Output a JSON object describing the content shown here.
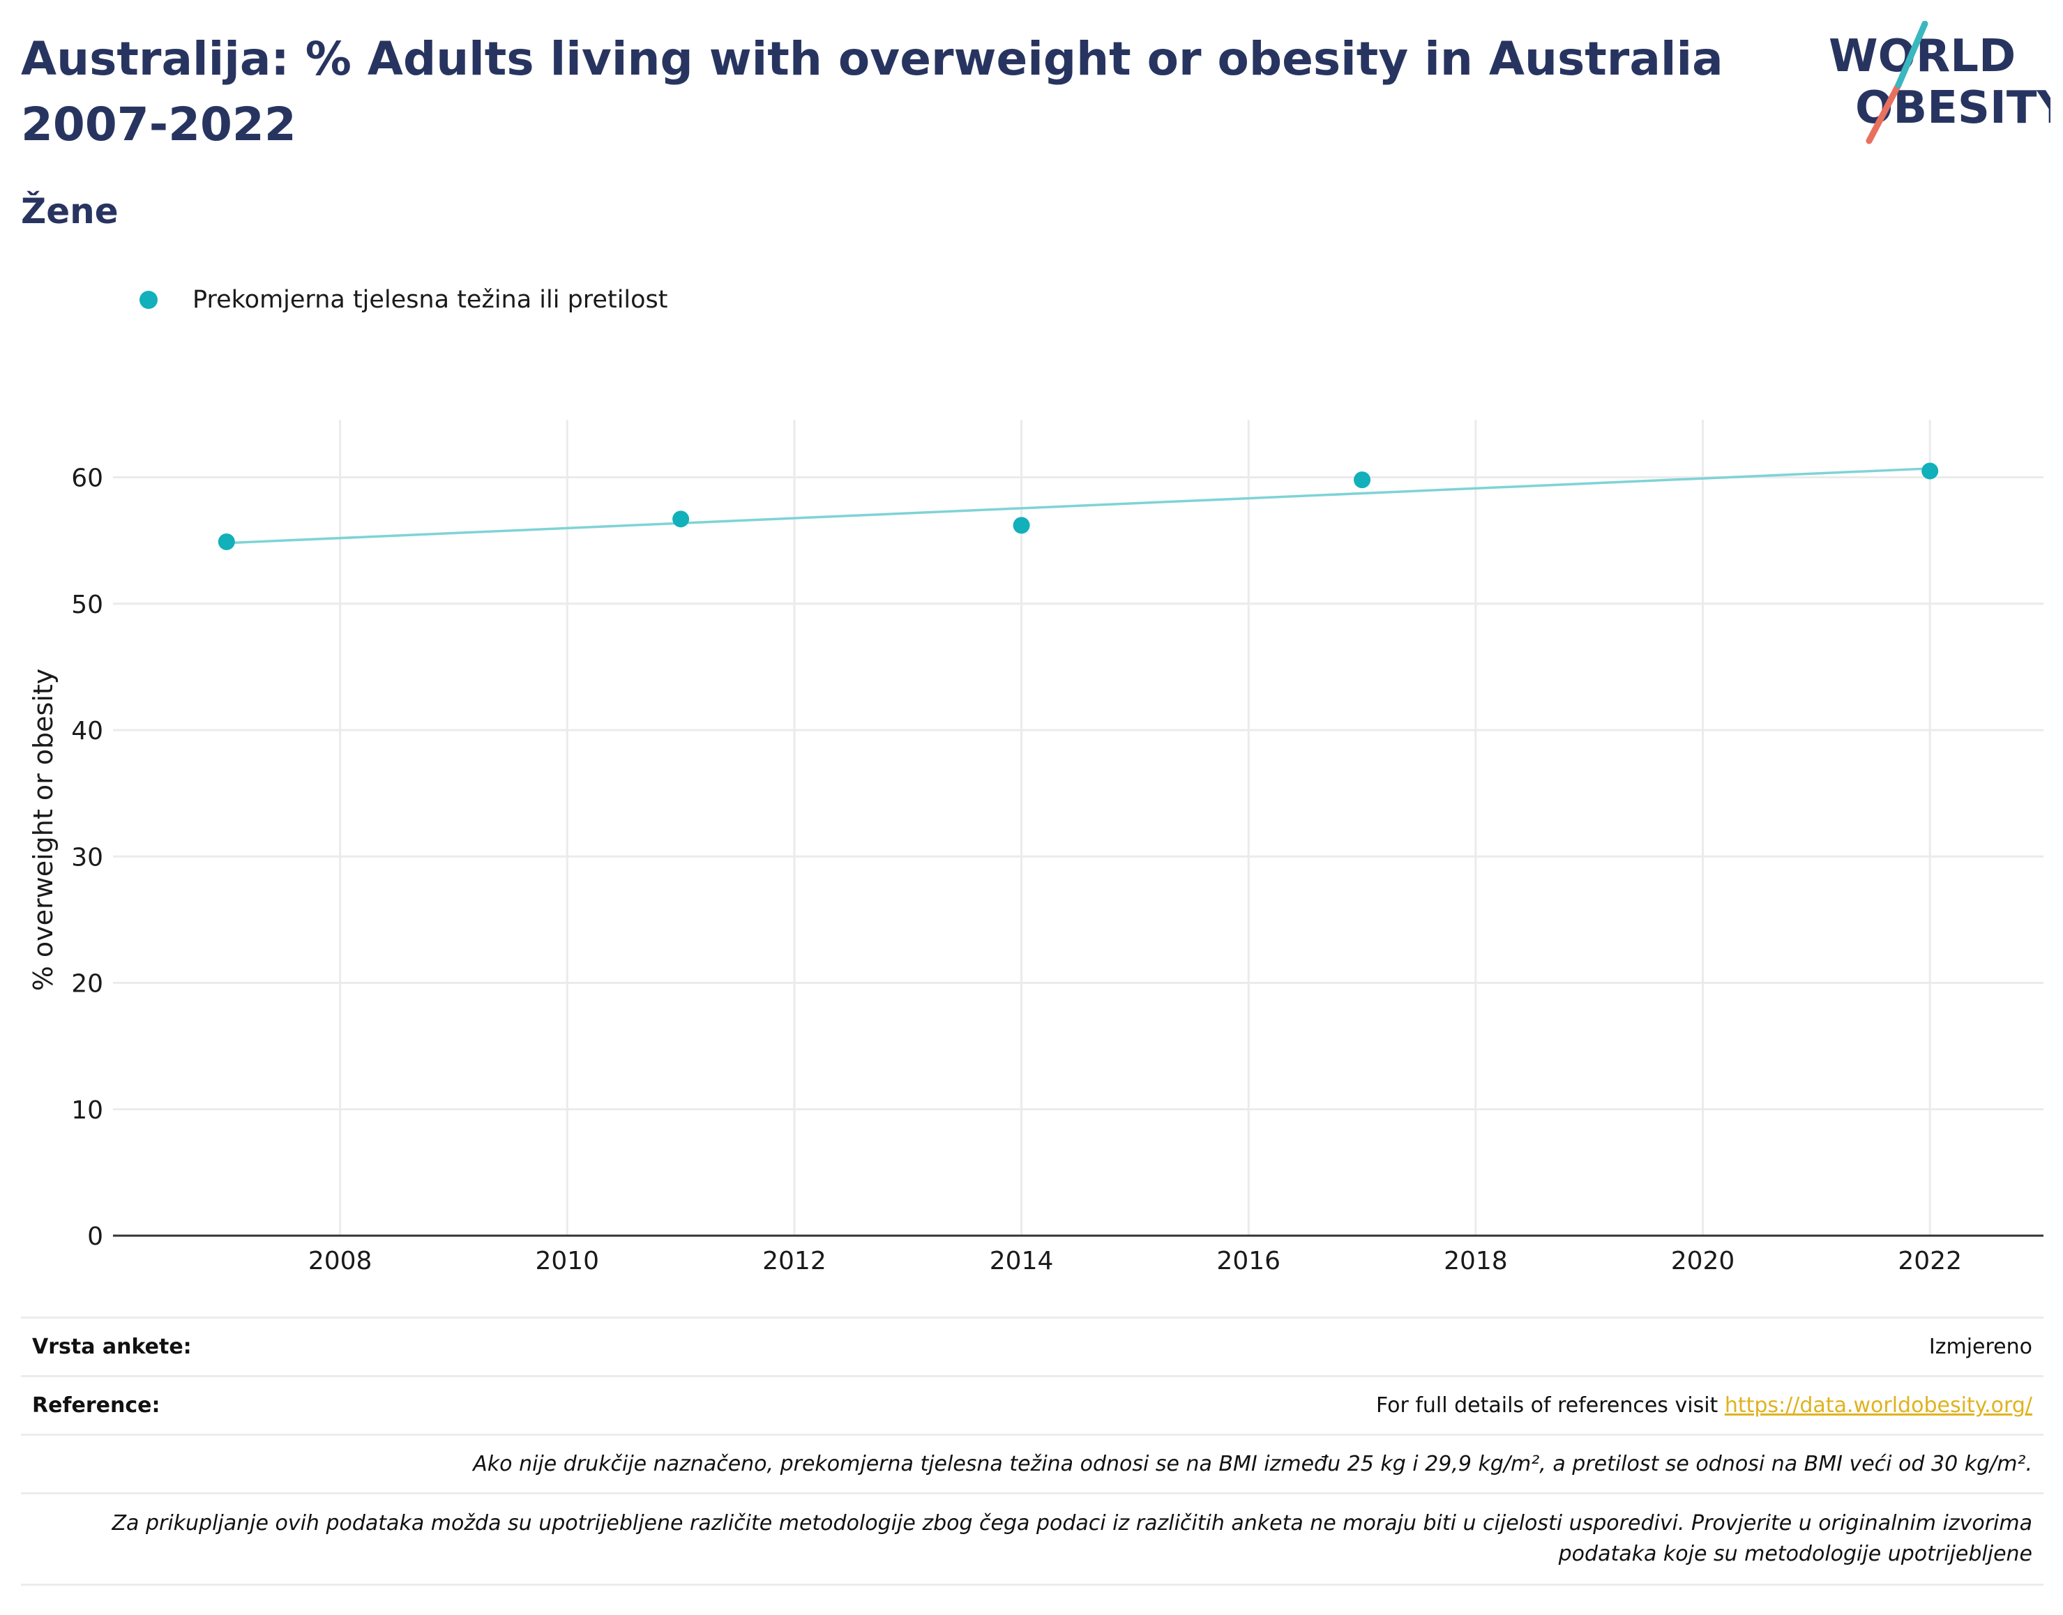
{
  "header": {
    "title": "Australija: % Adults living with overweight or obesity in Australia 2007-2022",
    "subtitle": "Žene"
  },
  "logo": {
    "line1": "WORLD",
    "line2": "OBESITY"
  },
  "colors": {
    "series": "#11b0ba",
    "trend": "#7fd3d6",
    "title": "#283460",
    "link": "#e0b21e"
  },
  "chart_data": {
    "type": "scatter",
    "title": "Australija: % Adults living with overweight or obesity in Australia 2007-2022",
    "subtitle": "Žene",
    "xlabel": "",
    "ylabel": "% overweight or obesity",
    "xlim": [
      2006,
      2023
    ],
    "ylim": [
      0,
      64
    ],
    "x_ticks": [
      2008,
      2010,
      2012,
      2014,
      2016,
      2018,
      2020,
      2022
    ],
    "y_ticks": [
      0,
      10,
      20,
      30,
      40,
      50,
      60
    ],
    "grid": true,
    "legend_position": "top-left",
    "series": [
      {
        "name": "Prekomjerna tjelesna težina ili pretilost",
        "x": [
          2007,
          2011,
          2014,
          2017,
          2022
        ],
        "y": [
          54.9,
          56.7,
          56.2,
          59.8,
          60.5
        ]
      }
    ],
    "trendline": {
      "x": [
        2007,
        2022
      ],
      "y": [
        54.8,
        60.7
      ]
    }
  },
  "footer": {
    "survey_label": "Vrsta ankete:",
    "survey_value": "Izmjereno",
    "reference_label": "Reference:",
    "reference_text": "For full details of references visit ",
    "reference_link": "https://data.worldobesity.org/",
    "note1": "Ako nije drukčije naznačeno, prekomjerna tjelesna težina odnosi se na BMI između 25 kg i 29,9 kg/m², a pretilost se odnosi na BMI veći od 30 kg/m².",
    "note2": "Za prikupljanje ovih podataka možda su upotrijebljene različite metodologije zbog čega podaci iz različitih anketa ne moraju biti u cijelosti usporedivi. Provjerite u originalnim izvorima podataka koje su metodologije upotrijebljene"
  }
}
